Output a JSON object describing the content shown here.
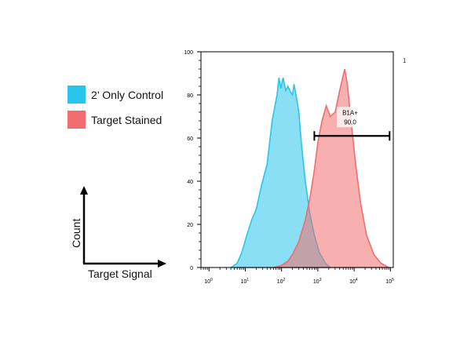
{
  "legend": {
    "items": [
      {
        "label": "2’ Only Control",
        "color": "#29c5ec"
      },
      {
        "label": "Target Stained",
        "color": "#f26d6d"
      }
    ]
  },
  "axis_key": {
    "x_label": "Target Signal",
    "y_label": "Count"
  },
  "corner_mark": "1",
  "chart_data": {
    "type": "area",
    "xscale": "log",
    "xlim": [
      0.6,
      120000
    ],
    "ylim": [
      0,
      100
    ],
    "x_ticks": [
      {
        "value": 1,
        "base": "10",
        "exp": "0"
      },
      {
        "value": 10,
        "base": "10",
        "exp": "1"
      },
      {
        "value": 100,
        "base": "10",
        "exp": "2"
      },
      {
        "value": 1000,
        "base": "10",
        "exp": "3"
      },
      {
        "value": 10000,
        "base": "10",
        "exp": "4"
      },
      {
        "value": 100000,
        "base": "10",
        "exp": "5"
      }
    ],
    "y_ticks": [
      "0",
      "20",
      "40",
      "60",
      "80",
      "100"
    ],
    "series": [
      {
        "name": "2’ Only Control",
        "color": "#29c5ec",
        "points": [
          [
            4,
            0
          ],
          [
            6,
            2
          ],
          [
            8,
            7
          ],
          [
            11,
            15
          ],
          [
            15,
            22
          ],
          [
            20,
            27
          ],
          [
            28,
            38
          ],
          [
            40,
            48
          ],
          [
            55,
            68
          ],
          [
            75,
            80
          ],
          [
            85,
            88
          ],
          [
            95,
            83
          ],
          [
            110,
            88
          ],
          [
            130,
            82
          ],
          [
            150,
            84
          ],
          [
            170,
            82
          ],
          [
            200,
            80
          ],
          [
            220,
            85
          ],
          [
            250,
            80
          ],
          [
            300,
            72
          ],
          [
            350,
            58
          ],
          [
            450,
            40
          ],
          [
            600,
            25
          ],
          [
            800,
            15
          ],
          [
            1100,
            7
          ],
          [
            1600,
            2
          ],
          [
            2200,
            0
          ]
        ]
      },
      {
        "name": "Target Stained",
        "color": "#f26d6d",
        "points": [
          [
            60,
            0
          ],
          [
            100,
            1
          ],
          [
            150,
            3
          ],
          [
            200,
            6
          ],
          [
            300,
            12
          ],
          [
            450,
            22
          ],
          [
            600,
            32
          ],
          [
            800,
            45
          ],
          [
            1000,
            58
          ],
          [
            1300,
            68
          ],
          [
            1700,
            75
          ],
          [
            2200,
            70
          ],
          [
            3000,
            72
          ],
          [
            4000,
            82
          ],
          [
            5500,
            92
          ],
          [
            6500,
            85
          ],
          [
            8000,
            70
          ],
          [
            11000,
            48
          ],
          [
            15000,
            30
          ],
          [
            22000,
            15
          ],
          [
            35000,
            6
          ],
          [
            55000,
            2
          ],
          [
            90000,
            0
          ]
        ]
      }
    ],
    "gate": {
      "label": "B1A+",
      "value": "90.0",
      "x_range": [
        800,
        95000
      ],
      "y": 61
    }
  }
}
